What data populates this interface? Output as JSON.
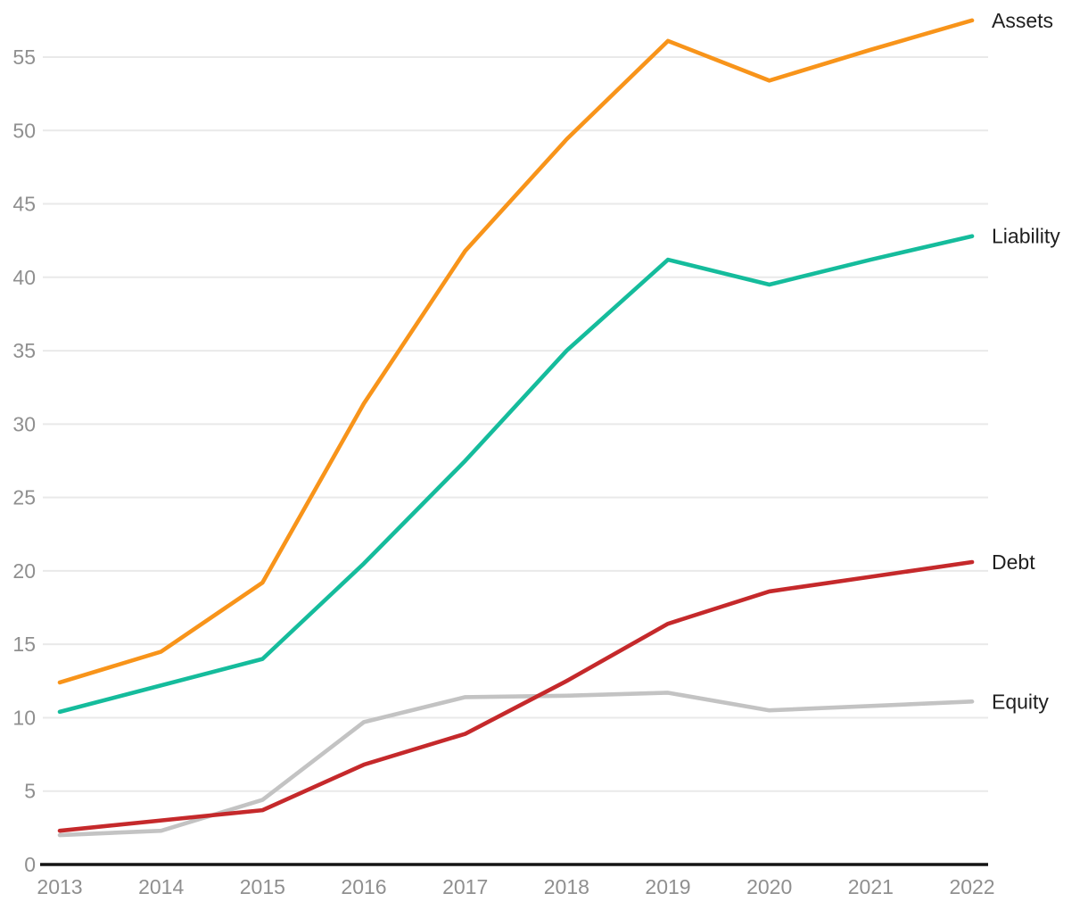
{
  "chart_data": {
    "type": "line",
    "title": "",
    "xlabel": "",
    "ylabel": "",
    "x": [
      2013,
      2014,
      2015,
      2016,
      2017,
      2018,
      2019,
      2020,
      2021,
      2022
    ],
    "series": [
      {
        "name": "Equity",
        "color": "#C3C3C3",
        "values": [
          2.0,
          2.3,
          4.4,
          9.7,
          11.4,
          11.5,
          11.7,
          10.5,
          10.8,
          11.1
        ]
      },
      {
        "name": "Debt",
        "color": "#C5292B",
        "values": [
          2.3,
          3.0,
          3.7,
          6.8,
          8.9,
          12.5,
          16.4,
          18.6,
          19.6,
          20.6
        ]
      },
      {
        "name": "Liability",
        "color": "#15BC9C",
        "values": [
          10.4,
          12.2,
          14.0,
          20.5,
          27.5,
          35.0,
          41.2,
          39.5,
          41.2,
          42.8
        ]
      },
      {
        "name": "Assets",
        "color": "#F8941A",
        "values": [
          12.4,
          14.5,
          19.2,
          31.4,
          41.8,
          49.4,
          56.1,
          53.4,
          55.5,
          57.5
        ]
      }
    ],
    "yticks": [
      0,
      5,
      10,
      15,
      20,
      25,
      30,
      35,
      40,
      45,
      50,
      55
    ],
    "ylim": [
      0,
      58.9
    ],
    "grid": true,
    "legend_position": "line-end-labels-right"
  },
  "style": {
    "grid_color": "#E9E9E9",
    "axis_color": "#141414",
    "tick_label_color": "#8F8F8F",
    "series_label_color": "#1F1F1F",
    "background": "#FFFFFF"
  }
}
